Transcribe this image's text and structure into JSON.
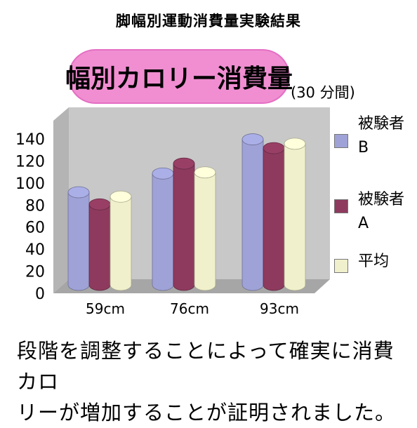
{
  "page": {
    "title": "脚幅別運動消費量実験結果",
    "caption_line1": "段階を調整することによって確実に消費カロ",
    "caption_line2": "リーが増加することが証明されました。"
  },
  "colors": {
    "pill": "#f08ed1",
    "wall": "#c8c8c8",
    "floor": "#a6a6a6",
    "series_b": "#9ea2d6",
    "series_a": "#8e3a5e",
    "series_avg": "#f0f0cc"
  },
  "chart_data": {
    "type": "bar",
    "title": "幅別カロリー消費量",
    "subtitle": "(30 分間)",
    "categories": [
      "59cm",
      "76cm",
      "93cm"
    ],
    "series": [
      {
        "name": "被験者\nB",
        "color": "#9ea2d6",
        "values": [
          84,
          101,
          132
        ]
      },
      {
        "name": "被験者\nA",
        "color": "#8e3a5e",
        "values": [
          73,
          110,
          124
        ]
      },
      {
        "name": "平均",
        "color": "#f0f0cc",
        "values": [
          80,
          102,
          128
        ]
      }
    ],
    "yticks": [
      "0",
      "20",
      "40",
      "60",
      "80",
      "100",
      "120",
      "140"
    ],
    "ylim": [
      0,
      140
    ],
    "grid": false,
    "legend_position": "right",
    "style": "3d-cylinder"
  }
}
